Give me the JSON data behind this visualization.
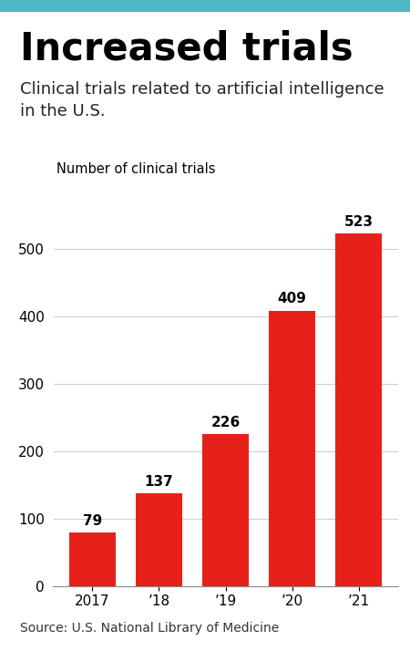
{
  "title": "Increased trials",
  "subtitle": "Clinical trials related to artificial intelligence\nin the U.S.",
  "categories": [
    "2017",
    "’18",
    "’19",
    "’20",
    "’21"
  ],
  "values": [
    79,
    137,
    226,
    409,
    523
  ],
  "bar_color": "#e8201a",
  "ylabel": "Number of clinical trials",
  "ylim": [
    0,
    580
  ],
  "yticks": [
    0,
    100,
    200,
    300,
    400,
    500
  ],
  "source": "Source: U.S. National Library of Medicine",
  "bar_label_fontsize": 11,
  "title_fontsize": 30,
  "subtitle_fontsize": 13,
  "axis_label_fontsize": 11,
  "source_fontsize": 10,
  "background_color": "#ffffff",
  "header_bar_color": "#4bb8c4",
  "grid_color": "#cccccc"
}
